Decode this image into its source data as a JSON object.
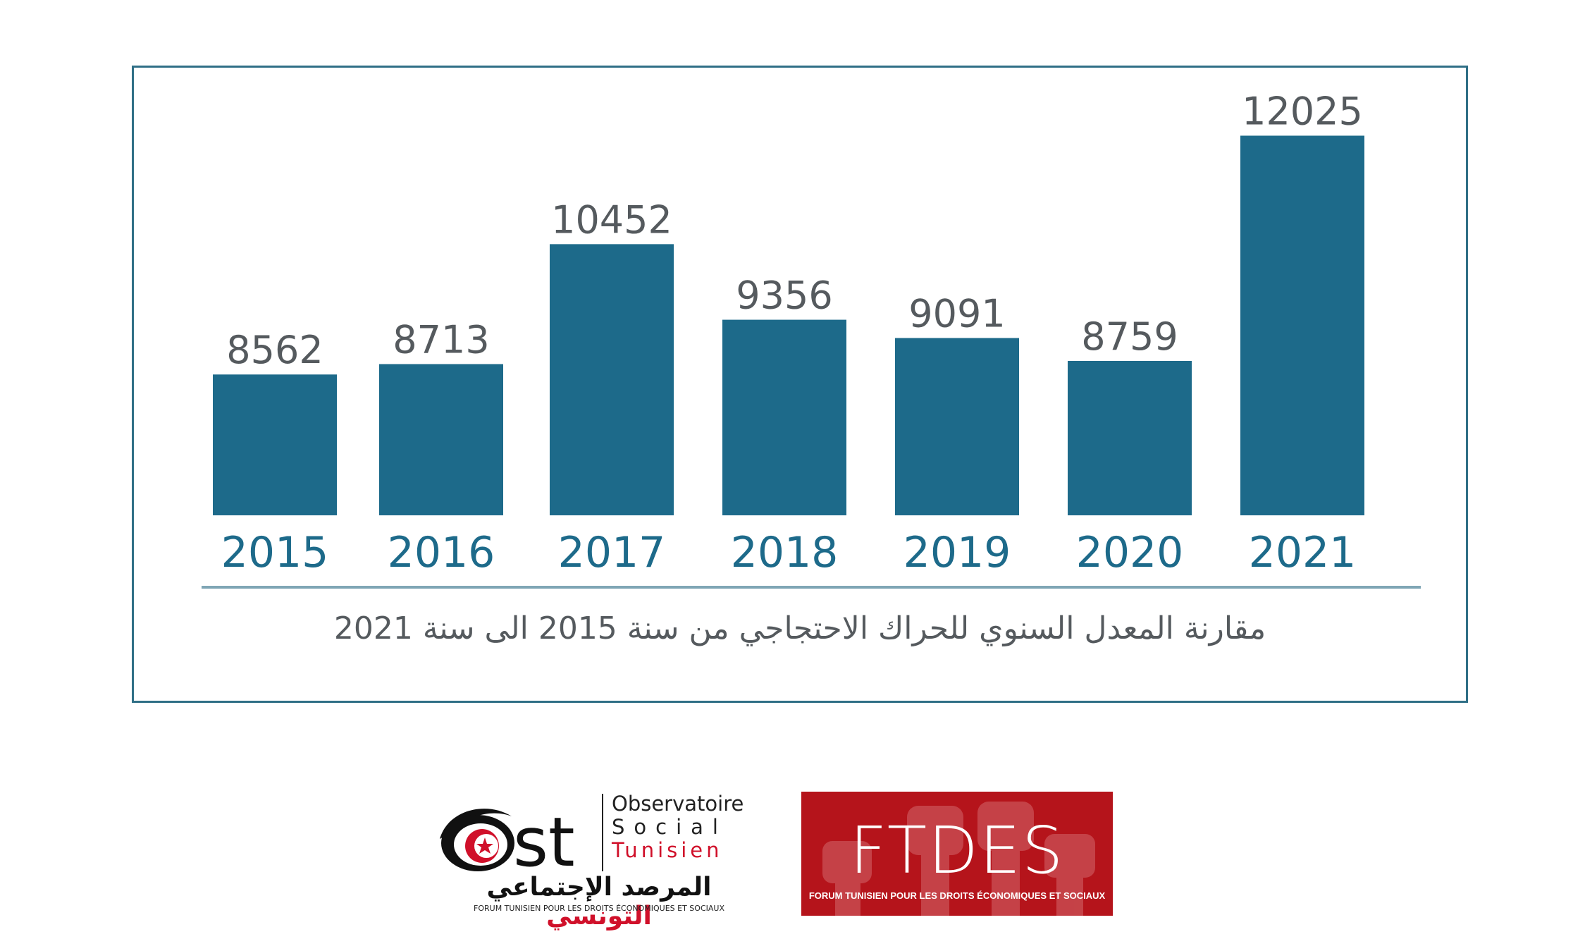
{
  "chart_data": {
    "type": "bar",
    "categories": [
      "2015",
      "2016",
      "2017",
      "2018",
      "2019",
      "2020",
      "2021"
    ],
    "values": [
      8562,
      8713,
      10452,
      9356,
      9091,
      8759,
      12025
    ],
    "title": "",
    "caption": "مقارنة المعدل السنوي للحراك الاحتجاجي من سنة 2015 الى سنة 2021",
    "xlabel": "",
    "ylabel": "",
    "ylim": [
      6520,
      12500
    ],
    "grid": false,
    "legend": "none",
    "bar_color": "#1d6a8a",
    "frame_color": "#2f6f86",
    "baseline_color": "#7fa6b5"
  },
  "logos": {
    "ost": {
      "mark": "Ost",
      "fr_line1": "Observatoire",
      "fr_line2": "Social",
      "fr_line3": "Tunisien",
      "ar_name_black": "المرصد الإجتماعي",
      "ar_name_red": "التونسي",
      "subtitle": "FORUM TUNISIEN POUR LES DROITS ÉCONOMIQUES ET SOCIAUX",
      "accent_color": "#d0102a"
    },
    "ftdes": {
      "name": "FTDES",
      "subtitle": "FORUM TUNISIEN POUR LES DROITS ÉCONOMIQUES ET SOCIAUX",
      "bg_color": "#b5141b",
      "icon": "raised-fists-icon"
    }
  }
}
